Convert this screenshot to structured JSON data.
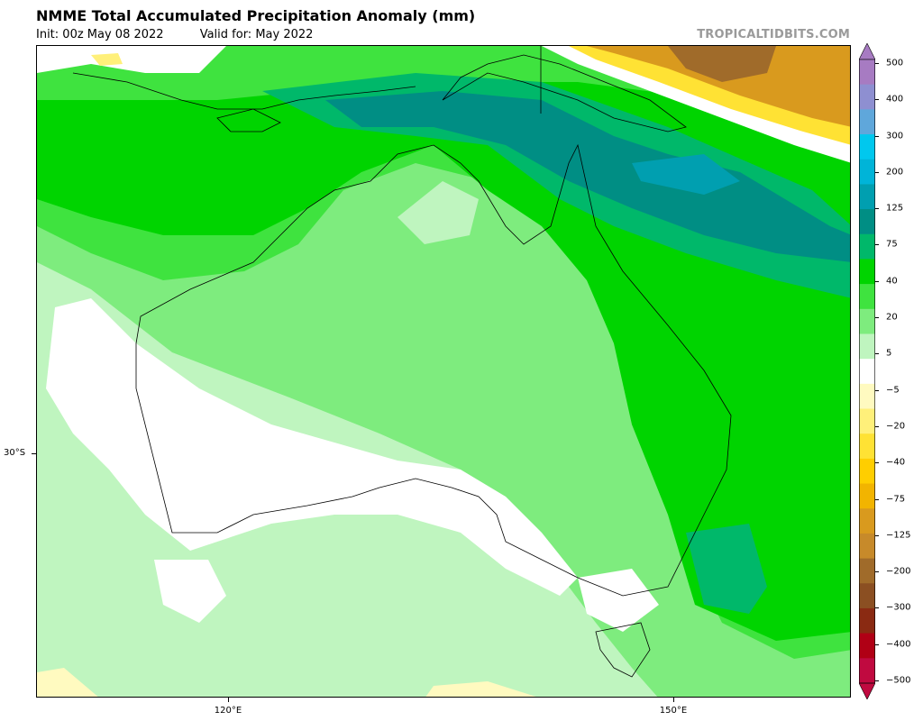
{
  "title": "NMME Total Accumulated Precipitation Anomaly (mm)",
  "init_text": "Init: 00z May 08 2022",
  "valid_text": "Valid for: May 2022",
  "credit": "TROPICALTIDBITS.COM",
  "map": {
    "lat_labels": [
      "30°S"
    ],
    "lon_labels": [
      "120°E",
      "150°E"
    ]
  },
  "colorbar": {
    "labels": [
      "500",
      "400",
      "300",
      "200",
      "125",
      "75",
      "40",
      "20",
      "5",
      "−5",
      "−20",
      "−40",
      "−75",
      "−125",
      "−200",
      "−300",
      "−400",
      "−500"
    ],
    "colors_top_to_bottom": [
      "#a77bc2",
      "#8e8fd1",
      "#5fa7db",
      "#00c8ee",
      "#00b4d8",
      "#009fb0",
      "#008e84",
      "#00b86a",
      "#00d400",
      "#3fe33f",
      "#7eec7e",
      "#bff5bf",
      "#ffffff",
      "#fffac0",
      "#fff07a",
      "#ffe234",
      "#ffce00",
      "#f2b400",
      "#d99a1e",
      "#c78a2a",
      "#a06b2a",
      "#8b4f22",
      "#8a2a12",
      "#b00015",
      "#c00a40"
    ]
  }
}
